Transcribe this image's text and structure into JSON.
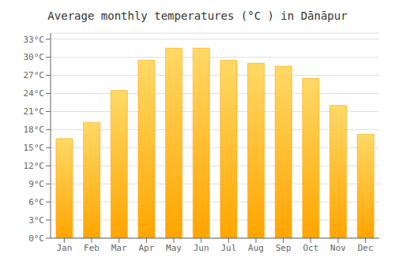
{
  "chart_data": {
    "type": "bar",
    "title": "Average monthly temperatures (°C ) in Dānāpur",
    "categories": [
      "Jan",
      "Feb",
      "Mar",
      "Apr",
      "May",
      "Jun",
      "Jul",
      "Aug",
      "Sep",
      "Oct",
      "Nov",
      "Dec"
    ],
    "values": [
      16.5,
      19.2,
      24.5,
      29.5,
      31.5,
      31.5,
      29.5,
      29.0,
      28.5,
      26.5,
      22.0,
      17.2
    ],
    "color": "#FFA500",
    "ylim": [
      0,
      34
    ],
    "yticks": [
      {
        "value": 0,
        "label": "0°C"
      },
      {
        "value": 3,
        "label": "3°C"
      },
      {
        "value": 6,
        "label": "6°C"
      },
      {
        "value": 9,
        "label": "9°C"
      },
      {
        "value": 12,
        "label": "12°C"
      },
      {
        "value": 15,
        "label": "15°C"
      },
      {
        "value": 18,
        "label": "18°C"
      },
      {
        "value": 21,
        "label": "21°C"
      },
      {
        "value": 24,
        "label": "24°C"
      },
      {
        "value": 27,
        "label": "27°C"
      },
      {
        "value": 30,
        "label": "30°C"
      },
      {
        "value": 33,
        "label": "33°C"
      }
    ],
    "grid": true
  }
}
